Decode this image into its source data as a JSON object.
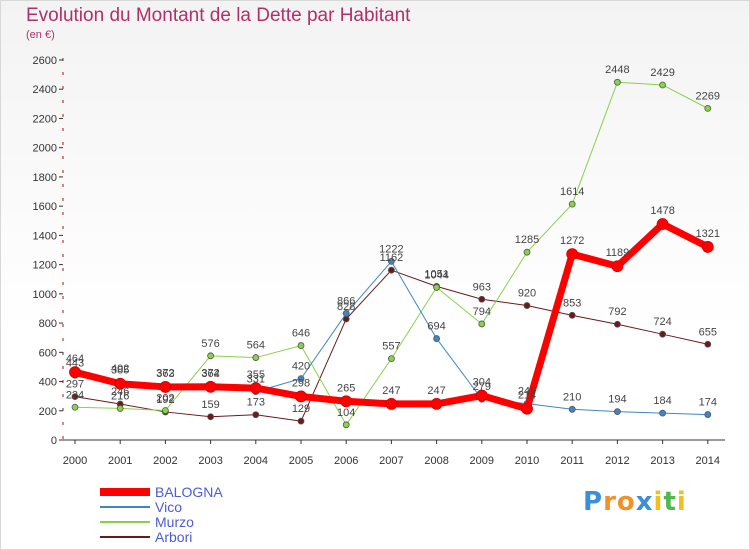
{
  "title": "Evolution du Montant de la Dette par Habitant",
  "subtitle": "(en €)",
  "chart_data": {
    "type": "line",
    "categories": [
      "2000",
      "2001",
      "2002",
      "2003",
      "2004",
      "2005",
      "2006",
      "2007",
      "2008",
      "2009",
      "2010",
      "2011",
      "2012",
      "2013",
      "2014"
    ],
    "ylim": [
      0,
      2600
    ],
    "yticks": [
      0,
      200,
      400,
      600,
      800,
      1000,
      1200,
      1400,
      1600,
      1800,
      2000,
      2200,
      2400,
      2600
    ],
    "grid": false,
    "legend_position": "bottom-left",
    "series": [
      {
        "name": "Arbori",
        "color": "#6b1a1a",
        "width": 1,
        "values": [
          297,
          246,
          192,
          159,
          173,
          129,
          828,
          1162,
          1051,
          963,
          920,
          853,
          792,
          724,
          655
        ]
      },
      {
        "name": "Murzo",
        "color": "#88d24a",
        "width": 1,
        "values": [
          224,
          216,
          202,
          576,
          564,
          646,
          104,
          557,
          1044,
          794,
          1285,
          1614,
          2448,
          2429,
          2269
        ]
      },
      {
        "name": "Vico",
        "color": "#3f86c6",
        "width": 1,
        "values": [
          443,
          402,
          372,
          372,
          331,
          420,
          866,
          1222,
          694,
          279,
          249,
          210,
          194,
          184,
          174
        ]
      },
      {
        "name": "BALOGNA",
        "color": "#ff0000",
        "width": 7,
        "values": [
          464,
          385,
          363,
          364,
          355,
          298,
          265,
          247,
          247,
          304,
          214,
          1272,
          1189,
          1478,
          1321
        ]
      }
    ]
  },
  "legend": [
    {
      "name": "BALOGNA",
      "color": "#ff0000"
    },
    {
      "name": "Vico",
      "color": "#3f86c6"
    },
    {
      "name": "Murzo",
      "color": "#88d24a"
    },
    {
      "name": "Arbori",
      "color": "#6b1a1a"
    }
  ],
  "logo": {
    "letters": [
      "P",
      "r",
      "o",
      "x",
      "i",
      "t",
      "i"
    ],
    "colors": [
      "#3b8fd9",
      "#f0922a",
      "#f0922a",
      "#3b8fd9",
      "#f0c020",
      "#4eb84e",
      "#f0c020"
    ]
  }
}
